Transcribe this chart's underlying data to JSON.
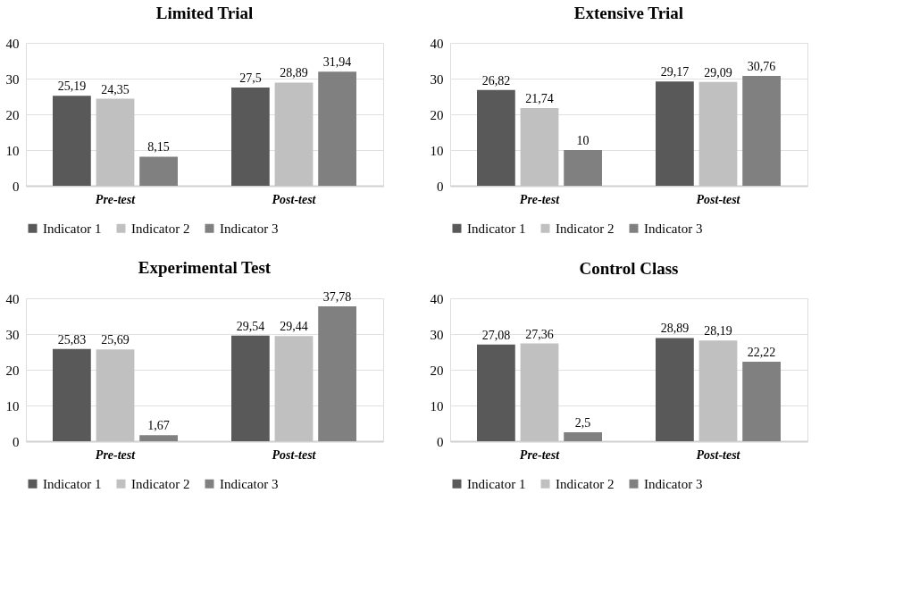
{
  "chart_data": [
    {
      "type": "bar",
      "title": "Limited Trial",
      "categories": [
        "Pre-test",
        "Post-test"
      ],
      "ylim": [
        0,
        40
      ],
      "yticks": [
        0,
        10,
        20,
        30,
        40
      ],
      "grid": "y",
      "legend": "bottom",
      "series": [
        {
          "name": "Indicator 1",
          "color": "#595959",
          "values": [
            25.19,
            27.5
          ],
          "value_labels": [
            "25,19",
            "27,5"
          ]
        },
        {
          "name": "Indicator 2",
          "color": "#c0c0c0",
          "values": [
            24.35,
            28.89
          ],
          "value_labels": [
            "24,35",
            "28,89"
          ]
        },
        {
          "name": "Indicator 3",
          "color": "#808080",
          "values": [
            8.15,
            31.94
          ],
          "value_labels": [
            "8,15",
            "31,94"
          ]
        }
      ]
    },
    {
      "type": "bar",
      "title": "Extensive Trial",
      "categories": [
        "Pre-test",
        "Post-test"
      ],
      "ylim": [
        0,
        40
      ],
      "yticks": [
        0,
        10,
        20,
        30,
        40
      ],
      "grid": "y",
      "legend": "bottom",
      "series": [
        {
          "name": "Indicator 1",
          "color": "#595959",
          "values": [
            26.82,
            29.17
          ],
          "value_labels": [
            "26,82",
            "29,17"
          ]
        },
        {
          "name": "Indicator 2",
          "color": "#c0c0c0",
          "values": [
            21.74,
            29.09
          ],
          "value_labels": [
            "21,74",
            "29,09"
          ]
        },
        {
          "name": "Indicator 3",
          "color": "#808080",
          "values": [
            10,
            30.76
          ],
          "value_labels": [
            "10",
            "30,76"
          ]
        }
      ]
    },
    {
      "type": "bar",
      "title": "Experimental Test",
      "categories": [
        "Pre-test",
        "Post-test"
      ],
      "ylim": [
        0,
        40
      ],
      "yticks": [
        0,
        10,
        20,
        30,
        40
      ],
      "grid": "y",
      "legend": "bottom",
      "series": [
        {
          "name": "Indicator 1",
          "color": "#595959",
          "values": [
            25.83,
            29.54
          ],
          "value_labels": [
            "25,83",
            "29,54"
          ]
        },
        {
          "name": "Indicator 2",
          "color": "#c0c0c0",
          "values": [
            25.69,
            29.44
          ],
          "value_labels": [
            "25,69",
            "29,44"
          ]
        },
        {
          "name": "Indicator 3",
          "color": "#808080",
          "values": [
            1.67,
            37.78
          ],
          "value_labels": [
            "1,67",
            "37,78"
          ]
        }
      ]
    },
    {
      "type": "bar",
      "title": "Control Class",
      "categories": [
        "Pre-test",
        "Post-test"
      ],
      "ylim": [
        0,
        40
      ],
      "yticks": [
        0,
        10,
        20,
        30,
        40
      ],
      "grid": "y",
      "legend": "bottom",
      "series": [
        {
          "name": "Indicator 1",
          "color": "#595959",
          "values": [
            27.08,
            28.89
          ],
          "value_labels": [
            "27,08",
            "28,89"
          ]
        },
        {
          "name": "Indicator 2",
          "color": "#c0c0c0",
          "values": [
            27.36,
            28.19
          ],
          "value_labels": [
            "27,36",
            "28,19"
          ]
        },
        {
          "name": "Indicator 3",
          "color": "#808080",
          "values": [
            2.5,
            22.22
          ],
          "value_labels": [
            "2,5",
            "22,22"
          ]
        }
      ]
    }
  ]
}
